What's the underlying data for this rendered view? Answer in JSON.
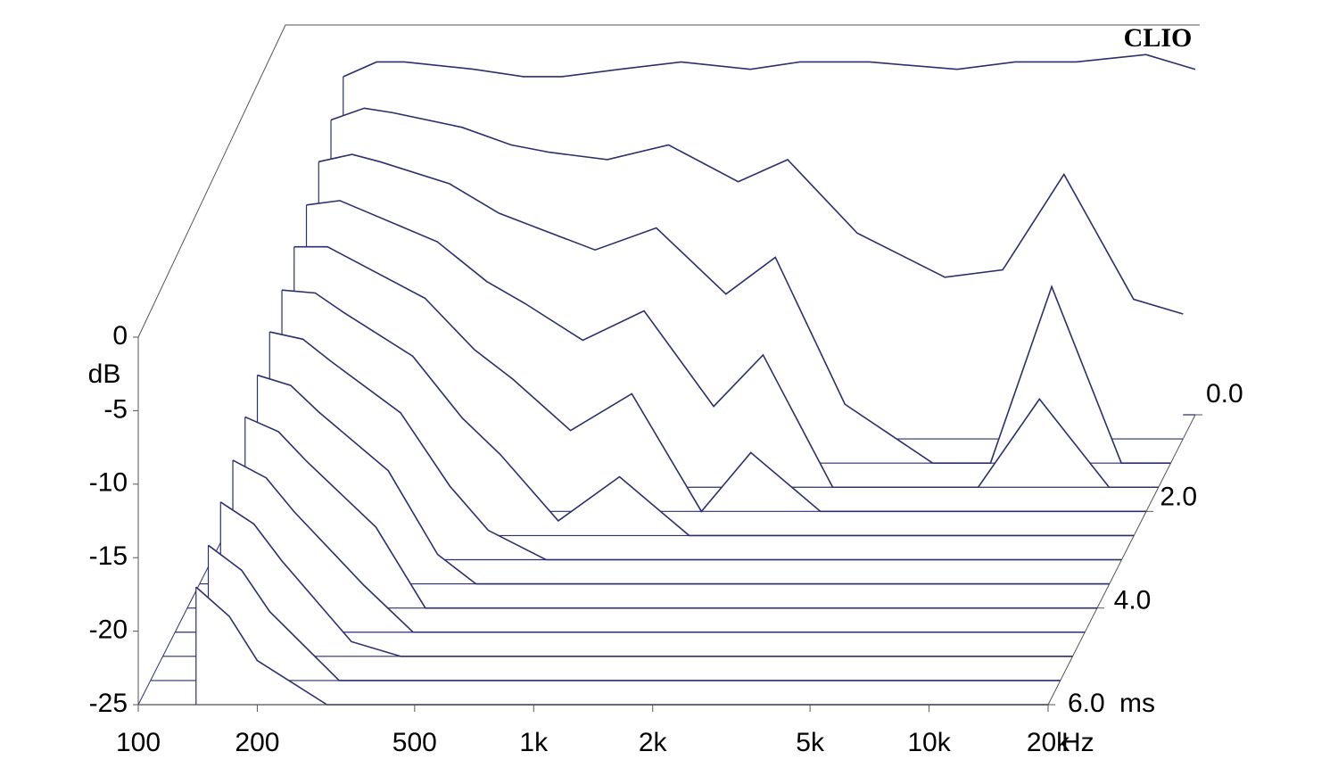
{
  "chart_data": {
    "type": "waterfall",
    "brand": "CLIO",
    "y_label": "dB",
    "x_label": "Hz",
    "z_label": "ms",
    "log_x": true,
    "color": "#2b2f6e",
    "xlim": [
      100,
      20000
    ],
    "ylim": [
      -25,
      0
    ],
    "zlim": [
      0,
      6
    ],
    "xticks": [
      100,
      200,
      500,
      {
        "value": 1000,
        "label": "1k"
      },
      {
        "value": 2000,
        "label": "2k"
      },
      {
        "value": 5000,
        "label": "5k"
      },
      {
        "value": 10000,
        "label": "10k"
      },
      {
        "value": 20000,
        "label": "20k"
      }
    ],
    "yticks": [
      0,
      -5,
      -10,
      -15,
      -20,
      -25
    ],
    "zticks": [
      {
        "value": 0,
        "label": "0.0"
      },
      {
        "value": 2,
        "label": "2.0"
      },
      {
        "value": 4,
        "label": "4.0"
      },
      {
        "value": 6,
        "label": "6.0"
      }
    ],
    "x": [
      140,
      170,
      200,
      300,
      400,
      500,
      700,
      1000,
      1500,
      2000,
      3000,
      5000,
      7000,
      10000,
      15000,
      20000
    ],
    "slices": [
      {
        "t": 0,
        "values": [
          -2,
          -1,
          -1,
          -1.5,
          -2,
          -2,
          -1.5,
          -1,
          -1.5,
          -1,
          -1,
          -1.5,
          -1,
          -1,
          -0.5,
          -1.5
        ]
      },
      {
        "t": 0.5,
        "values": [
          -3.3,
          -2.5,
          -2.8,
          -3.8,
          -5,
          -5.5,
          -6,
          -5,
          -7.5,
          -6,
          -11,
          -14,
          -13.5,
          -7,
          -15.5,
          -16.5
        ]
      },
      {
        "t": 1,
        "values": [
          -4.5,
          -4,
          -4.5,
          -6,
          -8,
          -9,
          -10.5,
          -9,
          -13.5,
          -11,
          -21,
          -25,
          -25,
          -13,
          -25,
          -25
        ]
      },
      {
        "t": 1.5,
        "values": [
          -5.8,
          -5.5,
          -6.3,
          -8.3,
          -11,
          -12.5,
          -15,
          -13,
          -19.5,
          -16,
          -25,
          -25,
          -25,
          -19,
          -25,
          -25
        ]
      },
      {
        "t": 2,
        "values": [
          -7,
          -7,
          -8,
          -10.5,
          -14,
          -16,
          -19.5,
          -17,
          -25,
          -21,
          -25,
          -25,
          -25,
          -25,
          -25,
          -25
        ]
      },
      {
        "t": 2.5,
        "values": [
          -8.3,
          -8.5,
          -9.8,
          -12.8,
          -17,
          -19.5,
          -24,
          -21,
          -25,
          -25,
          -25,
          -25,
          -25,
          -25,
          -25,
          -25
        ]
      },
      {
        "t": 3,
        "values": [
          -9.5,
          -10,
          -11.5,
          -15,
          -20,
          -23,
          -25,
          -25,
          -25,
          -25,
          -25,
          -25,
          -25,
          -25,
          -25,
          -25
        ]
      },
      {
        "t": 3.5,
        "values": [
          -10.8,
          -11.5,
          -13.3,
          -17.3,
          -23,
          -25,
          -25,
          -25,
          -25,
          -25,
          -25,
          -25,
          -25,
          -25,
          -25,
          -25
        ]
      },
      {
        "t": 4,
        "values": [
          -12,
          -13,
          -15,
          -19.5,
          -25,
          -25,
          -25,
          -25,
          -25,
          -25,
          -25,
          -25,
          -25,
          -25,
          -25,
          -25
        ]
      },
      {
        "t": 4.5,
        "values": [
          -13.3,
          -14.5,
          -16.8,
          -21.8,
          -25,
          -25,
          -25,
          -25,
          -25,
          -25,
          -25,
          -25,
          -25,
          -25,
          -25,
          -25
        ]
      },
      {
        "t": 5,
        "values": [
          -14.5,
          -16,
          -18.5,
          -24,
          -25,
          -25,
          -25,
          -25,
          -25,
          -25,
          -25,
          -25,
          -25,
          -25,
          -25,
          -25
        ]
      },
      {
        "t": 5.5,
        "values": [
          -15.8,
          -17.5,
          -20.3,
          -25,
          -25,
          -25,
          -25,
          -25,
          -25,
          -25,
          -25,
          -25,
          -25,
          -25,
          -25,
          -25
        ]
      },
      {
        "t": 6,
        "values": [
          -17,
          -19,
          -22,
          -25,
          -25,
          -25,
          -25,
          -25,
          -25,
          -25,
          -25,
          -25,
          -25,
          -25,
          -25,
          -25
        ]
      }
    ]
  }
}
